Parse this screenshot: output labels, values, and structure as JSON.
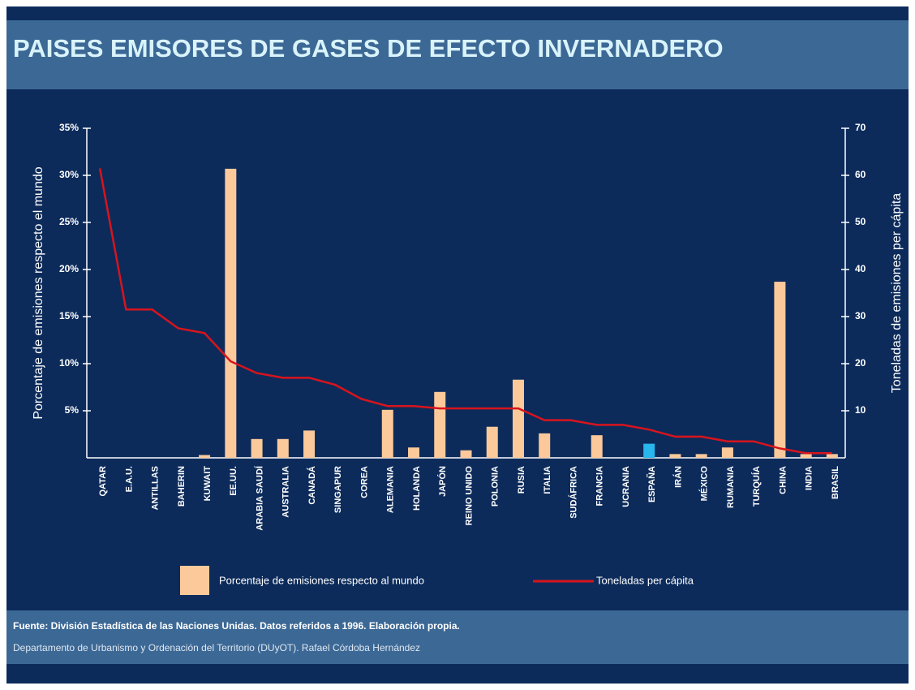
{
  "chart_data": {
    "type": "bar-line",
    "title": "PAISES EMISORES DE GASES DE EFECTO INVERNADERO",
    "ylabel": "Porcentaje de emisiones respecto el mundo",
    "y2label": "Toneladas de emisiones per cápita",
    "categories": [
      "QATAR",
      "E.A.U.",
      "ANTILLAS",
      "BAHERIN",
      "KUWAIT",
      "EE.UU.",
      "ARABIA SAUDÍ",
      "AUSTRALIA",
      "CANADÁ",
      "SINGAPUR",
      "COREA",
      "ALEMANIA",
      "HOLANDA",
      "JAPÓN",
      "REINO UNIDO",
      "POLONIA",
      "RUSIA",
      "ITALIA",
      "SUDÁFRICA",
      "FRANCIA",
      "UCRANIA",
      "ESPAÑA",
      "IRÁN",
      "MÉXICO",
      "RUMANIA",
      "TURQUÍA",
      "CHINA",
      "INDIA",
      "BRASIL"
    ],
    "series": [
      {
        "name": "Porcentaje de emisiones respecto al mundo",
        "kind": "bar",
        "color": "#fcc99a",
        "colors": [
          "#fcc99a",
          "#fcc99a",
          "#fcc99a",
          "#fcc99a",
          "#fcc99a",
          "#fcc99a",
          "#fcc99a",
          "#fcc99a",
          "#fcc99a",
          "#fcc99a",
          "#fcc99a",
          "#fcc99a",
          "#fcc99a",
          "#fcc99a",
          "#fcc99a",
          "#fcc99a",
          "#fcc99a",
          "#fcc99a",
          "#fcc99a",
          "#fcc99a",
          "#fcc99a",
          "#29b6ec",
          "#fcc99a",
          "#fcc99a",
          "#fcc99a",
          "#fcc99a",
          "#fcc99a",
          "#fcc99a",
          "#fcc99a"
        ],
        "values": [
          0,
          0,
          0,
          0,
          0.3,
          30.7,
          2.0,
          2.0,
          2.9,
          0,
          0,
          5.1,
          1.1,
          7.0,
          0.8,
          3.3,
          8.3,
          2.6,
          0,
          2.4,
          0,
          1.5,
          0.4,
          0.4,
          1.1,
          0,
          18.7,
          0.4,
          0.4
        ]
      },
      {
        "name": "Toneladas per cápita",
        "kind": "line",
        "axis": "y2",
        "color": "#d8141c",
        "values": [
          61.5,
          31.5,
          31.5,
          27.5,
          26.5,
          20.5,
          18,
          17,
          17,
          15.5,
          12.5,
          11,
          11,
          10.5,
          10.5,
          10.5,
          10.5,
          8,
          8,
          7,
          7,
          6,
          4.5,
          4.5,
          3.5,
          3.5,
          2,
          1,
          1
        ]
      }
    ],
    "ylim": [
      0,
      35
    ],
    "yticks": [
      {
        "value": 5,
        "label": "5%"
      },
      {
        "value": 10,
        "label": "10%"
      },
      {
        "value": 15,
        "label": "15%"
      },
      {
        "value": 20,
        "label": "20%"
      },
      {
        "value": 25,
        "label": "25%"
      },
      {
        "value": 30,
        "label": "30%"
      },
      {
        "value": 35,
        "label": "35%"
      }
    ],
    "y2lim": [
      0,
      70
    ],
    "y2ticks": [
      10,
      20,
      30,
      40,
      50,
      60,
      70
    ]
  },
  "footer": {
    "source": "Fuente: División Estadística de las Naciones Unidas. Datos referidos a 1996. Elaboración propia.",
    "credit": "Departamento de Urbanismo y Ordenación del Territorio (DUyOT). Rafael Córdoba Hernández"
  }
}
